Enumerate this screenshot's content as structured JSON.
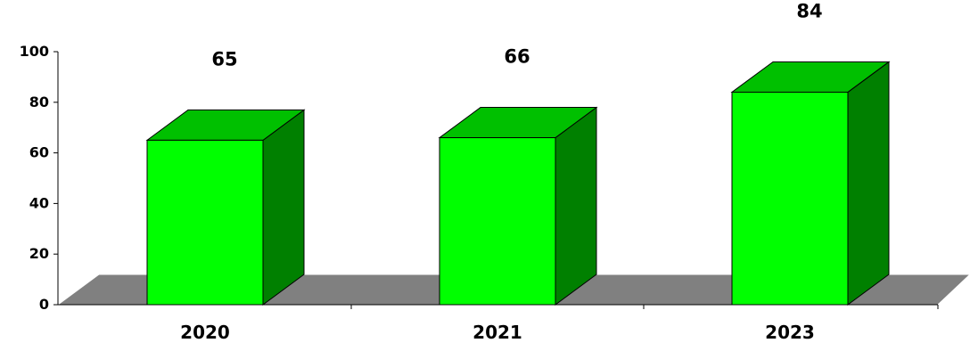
{
  "chart_data": {
    "type": "bar",
    "categories": [
      "2020",
      "2021",
      "2023"
    ],
    "values": [
      65,
      66,
      84
    ],
    "value_labels": [
      "65",
      "66",
      "84"
    ],
    "yticks": [
      "0",
      "20",
      "40",
      "60",
      "80",
      "100"
    ],
    "ylim": [
      0,
      100
    ],
    "grid": false,
    "three_d": true,
    "colors": {
      "bar_front": "#00ff00",
      "bar_top": "#00c000",
      "bar_side": "#008000",
      "floor": "#808080",
      "axis": "#000000"
    }
  }
}
